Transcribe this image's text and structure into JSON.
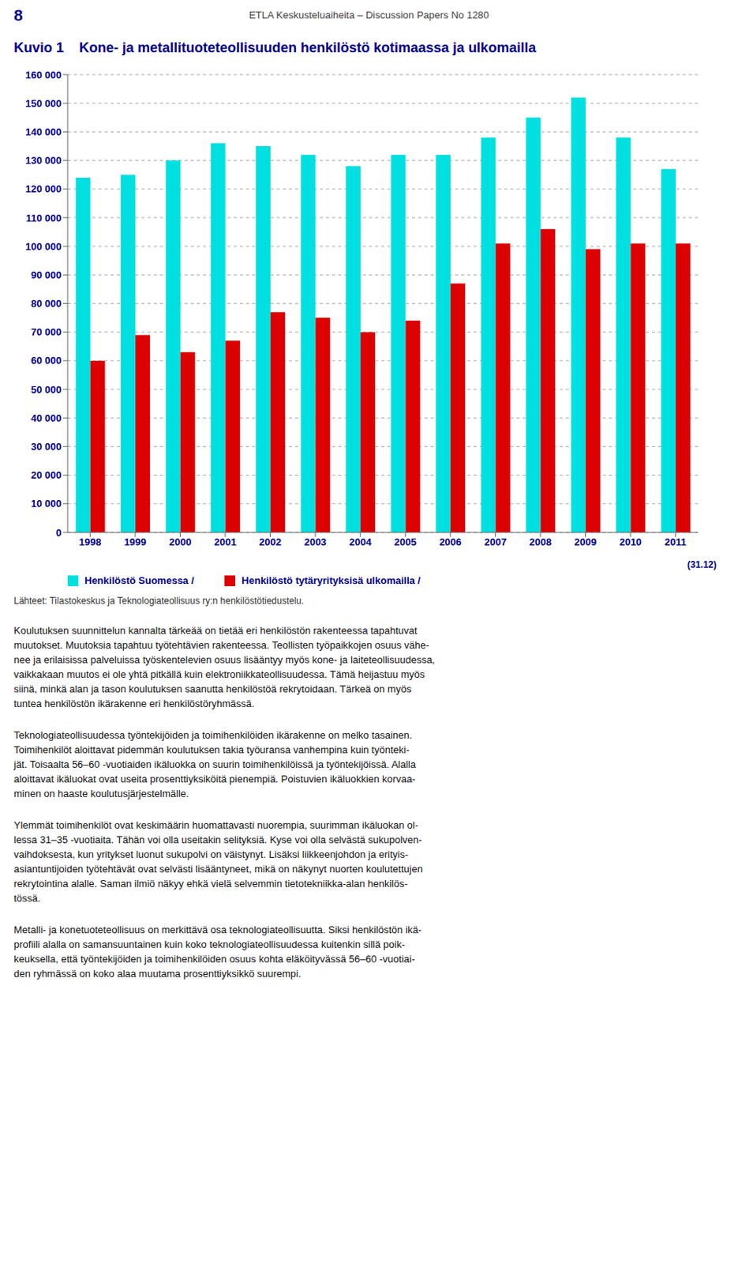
{
  "chart_data": {
    "type": "bar",
    "title": "Kuvio 1    Kone- ja metallituoteteollisuuden henkilöstö kotimaassa ja ulkomailla",
    "categories": [
      "1998",
      "1999",
      "2000",
      "2001",
      "2002",
      "2003",
      "2004",
      "2005",
      "2006",
      "2007",
      "2008",
      "2009",
      "2010",
      "2011"
    ],
    "series": [
      {
        "name": "Henkilöstö Suomessa /",
        "color": "#00E0E0",
        "values": [
          124000,
          125000,
          130000,
          136000,
          135000,
          132000,
          128000,
          132000,
          132000,
          138000,
          145000,
          152000,
          138000,
          127000
        ]
      },
      {
        "name": "Henkilöstö tytäryrityksisä ulkomailla /",
        "color": "#DD0000",
        "values": [
          60000,
          69000,
          63000,
          67000,
          77000,
          75000,
          70000,
          74000,
          87000,
          101000,
          106000,
          99000,
          101000,
          101000
        ]
      }
    ],
    "ylim": [
      0,
      160000
    ],
    "yticks": [
      0,
      {
        "value": 10000,
        "label": "10 000"
      },
      {
        "value": 20000,
        "label": "20 000"
      },
      {
        "value": 30000,
        "label": "30 000"
      },
      {
        "value": 40000,
        "label": "40 000"
      },
      {
        "value": 50000,
        "label": "50 000"
      },
      {
        "value": 60000,
        "label": "60 000"
      },
      {
        "value": 70000,
        "label": "70 000"
      },
      {
        "value": 80000,
        "label": "80 000"
      },
      {
        "value": 90000,
        "label": "90 000"
      },
      {
        "value": 100000,
        "label": "100 000"
      },
      {
        "value": 110000,
        "label": "110 000"
      },
      {
        "value": 120000,
        "label": "120 000"
      },
      {
        "value": 130000,
        "label": "130 000"
      },
      {
        "value": 140000,
        "label": "140 000"
      },
      {
        "value": 150000,
        "label": "150 000"
      },
      {
        "value": 160000,
        "label": "160 000"
      }
    ],
    "grid": true,
    "legend": "bottom",
    "annotations": [
      "8",
      "ETLA Keskusteluaiheita – Discussion Papers No 1280",
      "(31.12)",
      "Lähteet: Tilastokeskus ja Teknologiateollisuus ry:n henkilöstötiedustelu.",
      "Koulutuksen suunnittelun kannalta tärkeää on tietää eri henkilöstön rakenteessa tapahtuvat\nmuutokset. Muutoksia tapahtuu työtehtävien rakenteessa. Teollisten työpaikkojen osuus vähe-\nnee ja erilaisissa palveluissa työskentelevien osuus lisääntyy myös kone- ja laiteteollisuudessa,\nvaikkakaan muutos ei ole yhtä pitkällä kuin elektroniikkateollisuudessa. Tämä heijastuu myös\nsiinä, minkä alan ja tason koulutuksen saanutta henkilöstöä rekrytoidaan. Tärkeä on myös\ntuntea henkilöstön ikärakenne eri henkilöstöryhmässä.",
      "Teknologiateollisuudessa työntekijöiden ja toimihenkilöiden ikärakenne on melko tasainen.\nToimihenkilöt aloittavat pidemmän koulutuksen takia työuransa vanhempina kuin työnteki-\njät. Toisaalta 56–60 -vuotiaiden ikäluokka on suurin toimihenkilöissä ja työntekijöissä. Alalla\naloittavat ikäluokat ovat useita prosenttiyksiköitä pienempiä. Poistuvien ikäluokkien korvaa-\nminen on haaste koulutusjärjestelmälle.",
      "Ylemmät toimihenkilöt ovat keskimäärin huomattavasti nuorempia, suurimman ikäluokan ol-\nlessa 31–35 -vuotiaita. Tähän voi olla useitakin selityksiä. Kyse voi olla selvästä sukupolven-\nvaihdoksesta, kun yritykset luonut sukupolvi on väistynyt. Lisäksi liikkeenjohdon ja erityis-\nasiantuntijoiden työtehtävät ovat selvästi lisääntyneet, mikä on näkynyt nuorten koulutettujen\nrekrytointina alalle. Saman ilmiö näkyy ehkä vielä selvemmin tietotekniikka-alan henkilös-\ntössä.",
      "Metalli- ja konetuoteteollisuus on merkittävä osa teknologiateollisuutta. Siksi henkilöstön ikä-\nprofiili alalla on samansuuntainen kuin koko teknologiateollisuudessa kuitenkin sillä poik-\nkeuksella, että työntekijöiden ja toimihenkilöiden osuus kohta eläköityvässä 56–60 -vuotiai-\nden ryhmässä on koko alaa muutama prosenttiyksikkö suurempi."
    ]
  }
}
